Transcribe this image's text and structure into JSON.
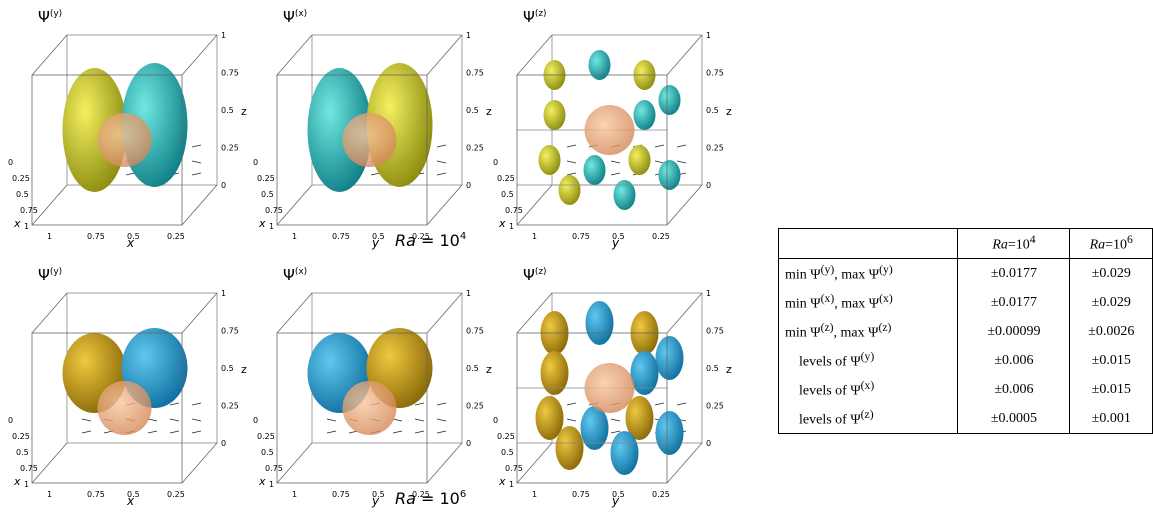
{
  "figure": {
    "panels": [
      {
        "title": [
          "Ψ",
          "(y)"
        ],
        "axis_label": "x",
        "kind": "y"
      },
      {
        "title": [
          "Ψ",
          "(x)"
        ],
        "axis_label": "y",
        "kind": "x"
      },
      {
        "title": [
          "Ψ",
          "(z)"
        ],
        "axis_label": "y",
        "kind": "z"
      },
      {
        "title": [
          "Ψ",
          "(y)"
        ],
        "axis_label": "x",
        "kind": "y"
      },
      {
        "title": [
          "Ψ",
          "(x)"
        ],
        "axis_label": "y",
        "kind": "x"
      },
      {
        "title": [
          "Ψ",
          "(z)"
        ],
        "axis_label": "y",
        "kind": "z"
      }
    ],
    "axes": {
      "z_label": "z",
      "z_ticks": [
        "0",
        "0.25",
        "0.5",
        "0.75",
        "1"
      ],
      "h_ticks": [
        "1",
        "0.75",
        "0.5",
        "0.25"
      ],
      "depth_label": "x",
      "depth_ticks": [
        "0",
        "0.25",
        "0.5",
        "0.75",
        "1"
      ]
    },
    "row_labels": [
      {
        "var": "Ra",
        "eq": " = 10",
        "exp": "4"
      },
      {
        "var": "Ra",
        "eq": " = 10",
        "exp": "6"
      }
    ]
  },
  "table": {
    "columns": [
      {
        "var": "Ra",
        "eq": "=10",
        "exp": "4"
      },
      {
        "var": "Ra",
        "eq": "=10",
        "exp": "6"
      }
    ],
    "rows": [
      {
        "label": [
          "min Ψ",
          "(y)",
          ", max Ψ",
          "(y)"
        ],
        "values": [
          "±0.0177",
          "±0.029"
        ]
      },
      {
        "label": [
          "min Ψ",
          "(x)",
          ", max Ψ",
          "(x)"
        ],
        "values": [
          "±0.0177",
          "±0.029"
        ]
      },
      {
        "label": [
          "min Ψ",
          "(z)",
          ", max Ψ",
          "(z)"
        ],
        "values": [
          "±0.00099",
          "±0.0026"
        ]
      },
      {
        "label": [
          "levels of Ψ",
          "(y)"
        ],
        "values": [
          "±0.006",
          "±0.015"
        ]
      },
      {
        "label": [
          "levels of Ψ",
          "(x)"
        ],
        "values": [
          "±0.006",
          "±0.015"
        ]
      },
      {
        "label": [
          "levels of Ψ",
          "(z)"
        ],
        "values": [
          "±0.0005",
          "±0.001"
        ]
      }
    ]
  }
}
